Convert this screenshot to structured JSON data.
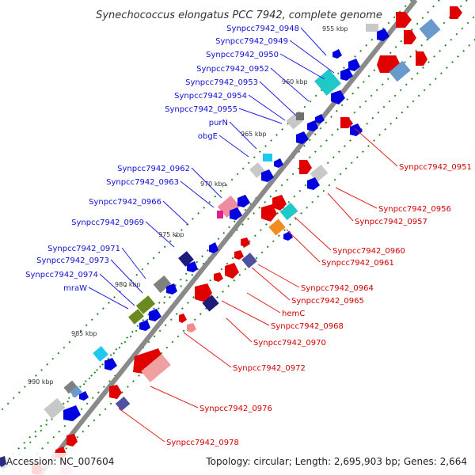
{
  "title": "Synechococcus elongatus PCC 7942, complete genome",
  "footer": {
    "accession": "Accession: NC_007604",
    "summary": "Topology: circular; Length: 2,695,903 bp; Genes: 2,664"
  },
  "ticks": [
    {
      "label": "955 kbp"
    },
    {
      "label": "960 kbp"
    },
    {
      "label": "965 kbp"
    },
    {
      "label": "970 kbp"
    },
    {
      "label": "975 kbp"
    },
    {
      "label": "980 kbp"
    },
    {
      "label": "985 kbp"
    },
    {
      "label": "990 kbp"
    }
  ],
  "left_labels": [
    {
      "text": "Synpcc7942_0948"
    },
    {
      "text": "Synpcc7942_0949"
    },
    {
      "text": "Synpcc7942_0950"
    },
    {
      "text": "Synpcc7942_0952"
    },
    {
      "text": "Synpcc7942_0953"
    },
    {
      "text": "Synpcc7942_0954"
    },
    {
      "text": "Synpcc7942_0955"
    },
    {
      "text": "purN"
    },
    {
      "text": "obgE"
    },
    {
      "text": "Synpcc7942_0962"
    },
    {
      "text": "Synpcc7942_0963"
    },
    {
      "text": "Synpcc7942_0966"
    },
    {
      "text": "Synpcc7942_0969"
    },
    {
      "text": "Synpcc7942_0971"
    },
    {
      "text": "Synpcc7942_0973"
    },
    {
      "text": "Synpcc7942_0974"
    },
    {
      "text": "mraW"
    }
  ],
  "right_labels": [
    {
      "text": "Synpcc7942_0951"
    },
    {
      "text": "Synpcc7942_0956"
    },
    {
      "text": "Synpcc7942_0957"
    },
    {
      "text": "Synpcc7942_0960"
    },
    {
      "text": "Synpcc7942_0961"
    },
    {
      "text": "Synpcc7942_0964"
    },
    {
      "text": "Synpcc7942_0965"
    },
    {
      "text": "hemC"
    },
    {
      "text": "Synpcc7942_0968"
    },
    {
      "text": "Synpcc7942_0970"
    },
    {
      "text": "Synpcc7942_0972"
    },
    {
      "text": "Synpcc7942_0976"
    },
    {
      "text": "Synpcc7942_0978"
    }
  ],
  "colors": {
    "backbone": "#8a8a8a",
    "tick_dash": "#2a8a2a",
    "left_label": "#1010d0",
    "right_label": "#d00000"
  }
}
